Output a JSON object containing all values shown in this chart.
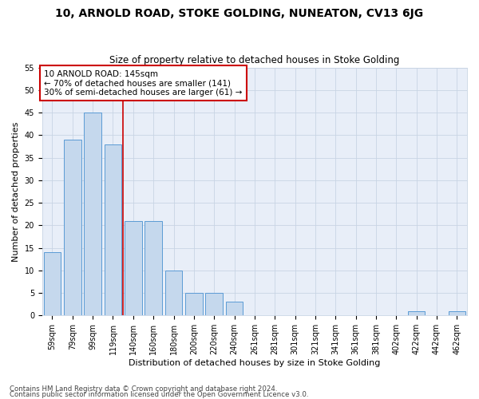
{
  "title1": "10, ARNOLD ROAD, STOKE GOLDING, NUNEATON, CV13 6JG",
  "title2": "Size of property relative to detached houses in Stoke Golding",
  "xlabel": "Distribution of detached houses by size in Stoke Golding",
  "ylabel": "Number of detached properties",
  "categories": [
    "59sqm",
    "79sqm",
    "99sqm",
    "119sqm",
    "140sqm",
    "160sqm",
    "180sqm",
    "200sqm",
    "220sqm",
    "240sqm",
    "261sqm",
    "281sqm",
    "301sqm",
    "321sqm",
    "341sqm",
    "361sqm",
    "381sqm",
    "402sqm",
    "422sqm",
    "442sqm",
    "462sqm"
  ],
  "values": [
    14,
    39,
    45,
    38,
    21,
    21,
    10,
    5,
    5,
    3,
    0,
    0,
    0,
    0,
    0,
    0,
    0,
    0,
    1,
    0,
    1
  ],
  "bar_color": "#c5d8ed",
  "bar_edge_color": "#5b9bd5",
  "bar_edge_width": 0.7,
  "vline_pos": 3.5,
  "vline_color": "#cc0000",
  "annotation_text": "10 ARNOLD ROAD: 145sqm\n← 70% of detached houses are smaller (141)\n30% of semi-detached houses are larger (61) →",
  "annotation_box_color": "#ffffff",
  "annotation_box_edge_color": "#cc0000",
  "ylim": [
    0,
    55
  ],
  "yticks": [
    0,
    5,
    10,
    15,
    20,
    25,
    30,
    35,
    40,
    45,
    50,
    55
  ],
  "grid_color": "#c8d4e4",
  "bg_color": "#e8eef8",
  "footer1": "Contains HM Land Registry data © Crown copyright and database right 2024.",
  "footer2": "Contains public sector information licensed under the Open Government Licence v3.0."
}
